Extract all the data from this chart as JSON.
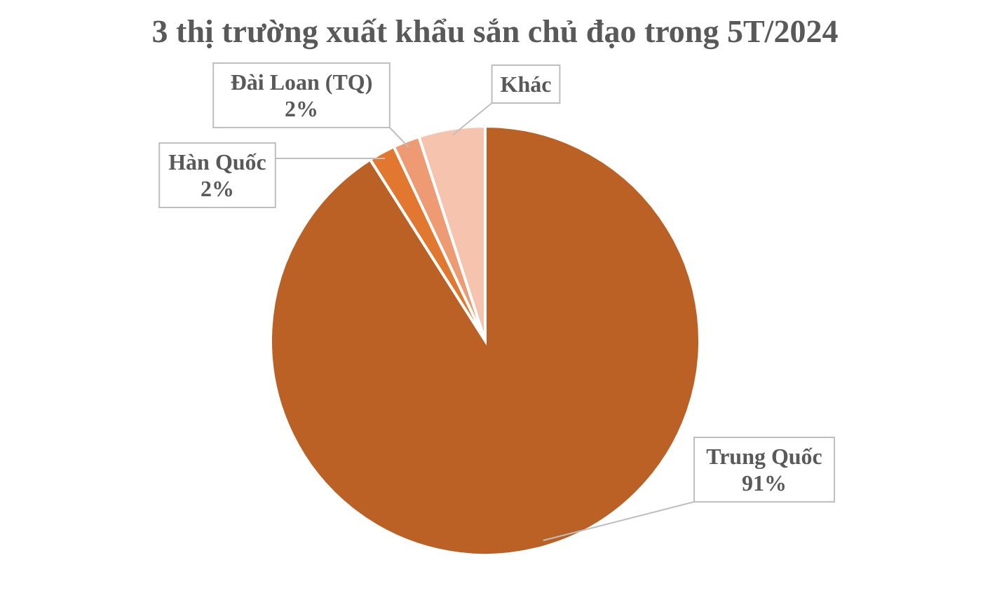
{
  "chart_data": {
    "type": "pie",
    "title": "3 thị trường xuất khẩu sắn chủ đạo trong 5T/2024",
    "categories": [
      "Trung Quốc",
      "Hàn Quốc",
      "Đài Loan (TQ)",
      "Khác"
    ],
    "values": [
      91,
      2,
      2,
      5
    ],
    "colors": [
      "#bb6125",
      "#e2782f",
      "#ee9a72",
      "#f5c3ae"
    ],
    "value_labels": [
      "91%",
      "2%",
      "2%",
      null
    ]
  }
}
